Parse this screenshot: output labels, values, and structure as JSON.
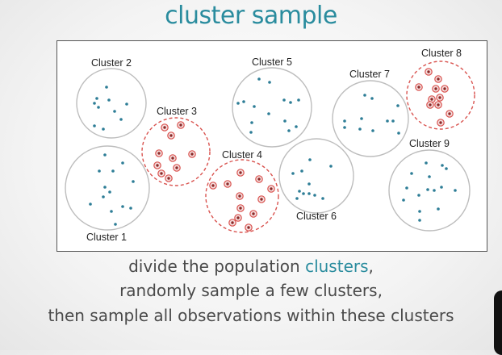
{
  "title": "cluster sample",
  "caption": {
    "line1_prefix": "divide the population ",
    "line1_highlight": "clusters",
    "line1_suffix": ",",
    "line2": "randomly sample a few clusters,",
    "line3": "then sample all observations within these clusters"
  },
  "colors": {
    "accent": "#2a8c9e",
    "dot": "#2d7d96",
    "sampled": "#d9534f",
    "circle": "#bdbdbd"
  },
  "clusters": [
    {
      "label": "Cluster 1",
      "sampled": false
    },
    {
      "label": "Cluster 2",
      "sampled": false
    },
    {
      "label": "Cluster 3",
      "sampled": true
    },
    {
      "label": "Cluster 4",
      "sampled": true
    },
    {
      "label": "Cluster 5",
      "sampled": false
    },
    {
      "label": "Cluster 6",
      "sampled": false
    },
    {
      "label": "Cluster 7",
      "sampled": false
    },
    {
      "label": "Cluster 8",
      "sampled": true
    },
    {
      "label": "Cluster 9",
      "sampled": false
    }
  ]
}
